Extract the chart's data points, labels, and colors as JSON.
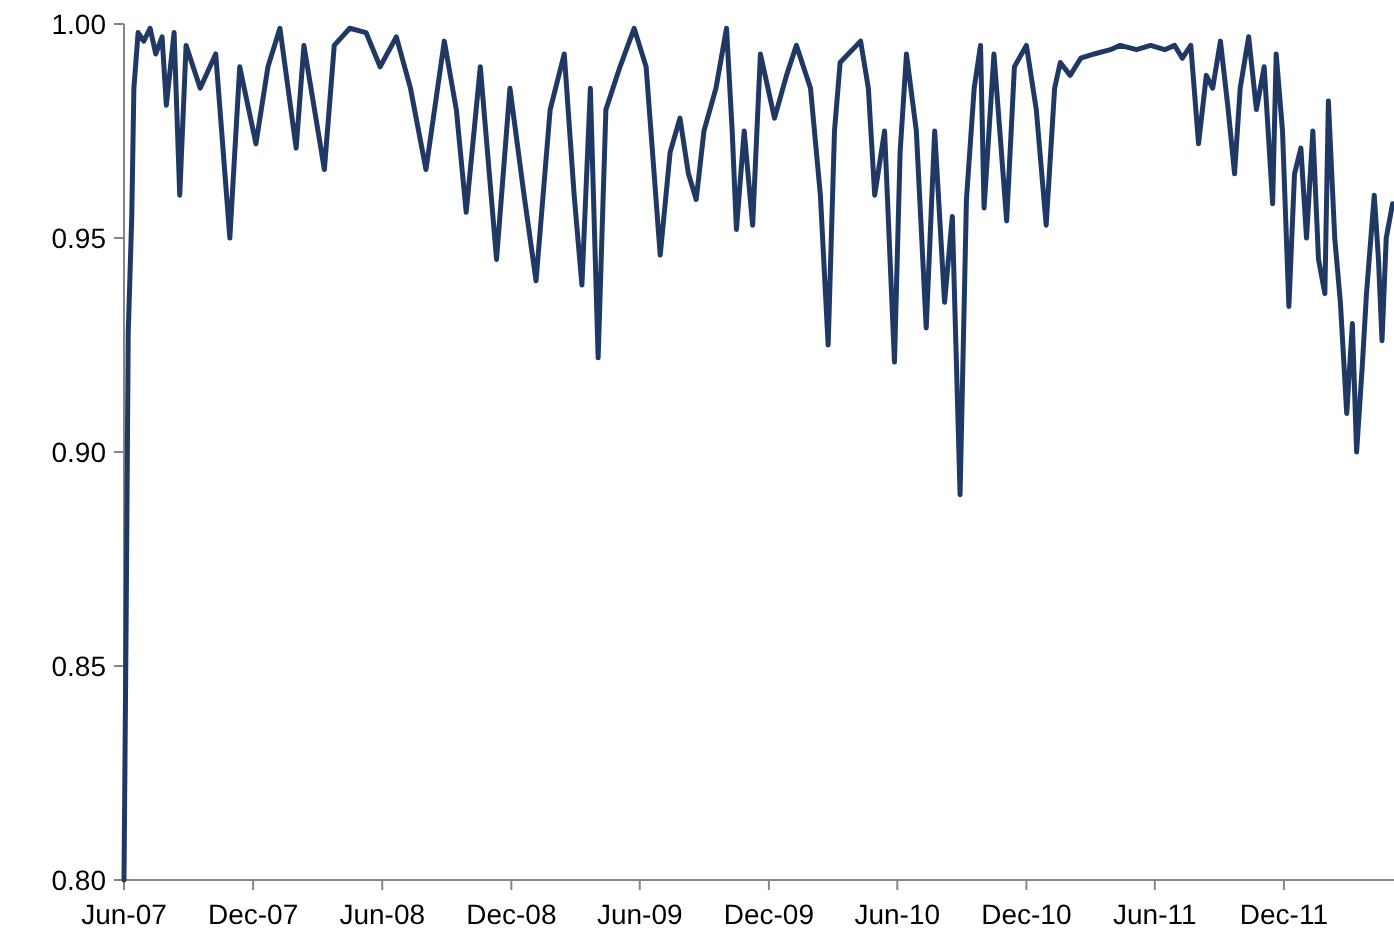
{
  "chart_data": {
    "type": "line",
    "xlim": [
      "2007-06-01",
      "2012-05-05"
    ],
    "ylim": [
      0.8,
      1.0
    ],
    "yticks": [
      {
        "value": 0.8,
        "label": "0.80"
      },
      {
        "value": 0.85,
        "label": "0.85"
      },
      {
        "value": 0.9,
        "label": "0.90"
      },
      {
        "value": 0.95,
        "label": "0.95"
      },
      {
        "value": 1.0,
        "label": "1.00"
      }
    ],
    "xticks": [
      {
        "value": "2007-06-01",
        "label": "Jun-07"
      },
      {
        "value": "2007-12-01",
        "label": "Dec-07"
      },
      {
        "value": "2008-06-01",
        "label": "Jun-08"
      },
      {
        "value": "2008-12-01",
        "label": "Dec-08"
      },
      {
        "value": "2009-06-01",
        "label": "Jun-09"
      },
      {
        "value": "2009-12-01",
        "label": "Dec-09"
      },
      {
        "value": "2010-06-01",
        "label": "Jun-10"
      },
      {
        "value": "2010-12-01",
        "label": "Dec-10"
      },
      {
        "value": "2011-06-01",
        "label": "Jun-11"
      },
      {
        "value": "2011-12-01",
        "label": "Dec-11"
      }
    ],
    "grid": false,
    "marker": "none",
    "line_style": "solid",
    "series": [
      {
        "color": "#1f3864",
        "x": [
          "2007-06-01",
          "2007-06-04",
          "2007-06-07",
          "2007-06-12",
          "2007-06-15",
          "2007-06-21",
          "2007-06-29",
          "2007-07-08",
          "2007-07-16",
          "2007-07-25",
          "2007-07-31",
          "2007-08-11",
          "2007-08-19",
          "2007-08-28",
          "2007-09-17",
          "2007-10-09",
          "2007-10-29",
          "2007-11-12",
          "2007-12-05",
          "2007-12-22",
          "2008-01-08",
          "2008-01-31",
          "2008-02-11",
          "2008-03-11",
          "2008-03-25",
          "2008-04-16",
          "2008-05-09",
          "2008-05-29",
          "2008-06-21",
          "2008-07-11",
          "2008-08-02",
          "2008-08-28",
          "2008-09-14",
          "2008-09-28",
          "2008-10-18",
          "2008-11-10",
          "2008-11-29",
          "2008-12-19",
          "2009-01-05",
          "2009-01-25",
          "2009-02-14",
          "2009-02-28",
          "2009-03-11",
          "2009-03-23",
          "2009-04-03",
          "2009-04-14",
          "2009-05-04",
          "2009-05-24",
          "2009-06-10",
          "2009-06-30",
          "2009-07-14",
          "2009-07-28",
          "2009-08-09",
          "2009-08-20",
          "2009-08-31",
          "2009-09-17",
          "2009-10-02",
          "2009-10-10",
          "2009-10-16",
          "2009-10-27",
          "2009-11-08",
          "2009-11-19",
          "2009-12-09",
          "2009-12-26",
          "2010-01-09",
          "2010-01-29",
          "2010-02-12",
          "2010-02-23",
          "2010-03-04",
          "2010-03-12",
          "2010-04-10",
          "2010-04-21",
          "2010-04-30",
          "2010-05-14",
          "2010-05-28",
          "2010-06-05",
          "2010-06-14",
          "2010-06-28",
          "2010-07-12",
          "2010-07-24",
          "2010-08-07",
          "2010-08-18",
          "2010-08-29",
          "2010-09-07",
          "2010-09-18",
          "2010-09-27",
          "2010-10-02",
          "2010-10-16",
          "2010-11-03",
          "2010-11-14",
          "2010-12-01",
          "2010-12-15",
          "2010-12-29",
          "2011-01-10",
          "2011-01-18",
          "2011-02-01",
          "2011-02-16",
          "2011-03-07",
          "2011-03-30",
          "2011-04-13",
          "2011-05-06",
          "2011-05-26",
          "2011-06-15",
          "2011-06-29",
          "2011-07-10",
          "2011-07-22",
          "2011-08-02",
          "2011-08-13",
          "2011-08-22",
          "2011-09-02",
          "2011-09-13",
          "2011-09-22",
          "2011-09-30",
          "2011-10-12",
          "2011-10-23",
          "2011-11-03",
          "2011-11-15",
          "2011-11-20",
          "2011-11-29",
          "2011-12-08",
          "2011-12-16",
          "2011-12-25",
          "2012-01-02",
          "2012-01-11",
          "2012-01-19",
          "2012-01-28",
          "2012-02-02",
          "2012-02-11",
          "2012-02-19",
          "2012-02-28",
          "2012-03-07",
          "2012-03-13",
          "2012-03-21",
          "2012-03-27",
          "2012-04-07",
          "2012-04-13",
          "2012-04-18",
          "2012-04-24",
          "2012-05-03"
        ],
        "values": [
          0.8,
          0.86,
          0.928,
          0.955,
          0.985,
          0.998,
          0.996,
          0.999,
          0.993,
          0.997,
          0.981,
          0.998,
          0.96,
          0.995,
          0.985,
          0.993,
          0.95,
          0.99,
          0.972,
          0.99,
          0.999,
          0.971,
          0.995,
          0.966,
          0.995,
          0.999,
          0.998,
          0.99,
          0.997,
          0.985,
          0.966,
          0.996,
          0.98,
          0.956,
          0.99,
          0.945,
          0.985,
          0.96,
          0.94,
          0.98,
          0.993,
          0.96,
          0.939,
          0.985,
          0.922,
          0.98,
          0.99,
          0.999,
          0.99,
          0.946,
          0.97,
          0.978,
          0.965,
          0.959,
          0.975,
          0.985,
          0.999,
          0.975,
          0.952,
          0.975,
          0.953,
          0.993,
          0.978,
          0.988,
          0.995,
          0.985,
          0.96,
          0.925,
          0.975,
          0.991,
          0.996,
          0.985,
          0.96,
          0.975,
          0.921,
          0.97,
          0.993,
          0.975,
          0.929,
          0.975,
          0.935,
          0.955,
          0.89,
          0.959,
          0.985,
          0.995,
          0.957,
          0.993,
          0.954,
          0.99,
          0.995,
          0.98,
          0.953,
          0.985,
          0.991,
          0.988,
          0.992,
          0.993,
          0.994,
          0.995,
          0.994,
          0.995,
          0.994,
          0.995,
          0.992,
          0.995,
          0.972,
          0.988,
          0.985,
          0.996,
          0.98,
          0.965,
          0.985,
          0.997,
          0.98,
          0.99,
          0.958,
          0.993,
          0.975,
          0.934,
          0.965,
          0.971,
          0.95,
          0.975,
          0.945,
          0.937,
          0.982,
          0.95,
          0.935,
          0.909,
          0.93,
          0.9,
          0.92,
          0.937,
          0.96,
          0.945,
          0.926,
          0.95,
          0.958
        ]
      }
    ]
  }
}
